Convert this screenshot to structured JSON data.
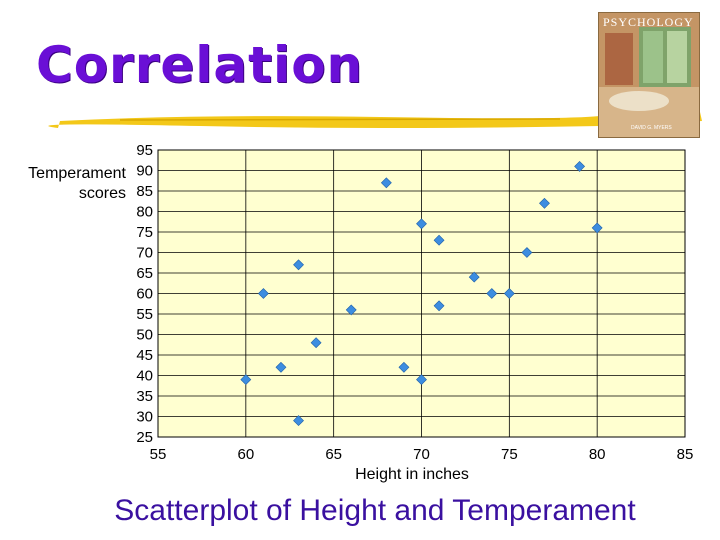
{
  "slide": {
    "title": "Correlation",
    "caption": "Scatterplot of Height and Temperament",
    "book_title": "PSYCHOLOGY",
    "book_author": "DAVID G. MYERS",
    "title_color": "#6a0fd6",
    "caption_color": "#3a10a0",
    "rule_color": "#f2c200"
  },
  "chart_data": {
    "type": "scatter",
    "xlabel": "Height in inches",
    "ylabel": [
      "Temperament",
      "scores"
    ],
    "xlim": [
      55,
      85
    ],
    "ylim": [
      25,
      95
    ],
    "x_ticks": [
      55,
      60,
      65,
      70,
      75,
      80,
      85
    ],
    "y_ticks": [
      25,
      30,
      35,
      40,
      45,
      50,
      55,
      60,
      65,
      70,
      75,
      80,
      85,
      90,
      95
    ],
    "grid": true,
    "plot_background": "#ffffd0",
    "marker_color": "#3d8de0",
    "marker": "diamond",
    "points": [
      {
        "x": 60,
        "y": 39
      },
      {
        "x": 61,
        "y": 60
      },
      {
        "x": 62,
        "y": 42
      },
      {
        "x": 63,
        "y": 29
      },
      {
        "x": 63,
        "y": 67
      },
      {
        "x": 64,
        "y": 48
      },
      {
        "x": 66,
        "y": 56
      },
      {
        "x": 68,
        "y": 87
      },
      {
        "x": 69,
        "y": 42
      },
      {
        "x": 70,
        "y": 39
      },
      {
        "x": 70,
        "y": 77
      },
      {
        "x": 71,
        "y": 57
      },
      {
        "x": 71,
        "y": 73
      },
      {
        "x": 73,
        "y": 64
      },
      {
        "x": 74,
        "y": 60
      },
      {
        "x": 75,
        "y": 60
      },
      {
        "x": 76,
        "y": 70
      },
      {
        "x": 77,
        "y": 82
      },
      {
        "x": 79,
        "y": 91
      },
      {
        "x": 80,
        "y": 76
      }
    ]
  }
}
